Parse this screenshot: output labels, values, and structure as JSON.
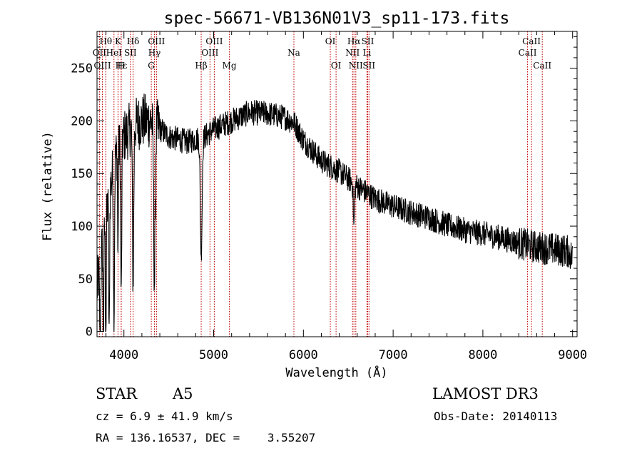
{
  "chart_data": {
    "type": "line",
    "title": "spec-56671-VB136N01V3_sp11-173.fits",
    "xlabel": "Wavelength (Å)",
    "ylabel": "Flux (relative)",
    "xlim": [
      3700,
      9050
    ],
    "ylim": [
      -5,
      285
    ],
    "xticks": [
      4000,
      5000,
      6000,
      7000,
      8000,
      9000
    ],
    "yticks": [
      0,
      50,
      100,
      150,
      200,
      250
    ],
    "continuum": [
      [
        3700,
        40
      ],
      [
        3800,
        110
      ],
      [
        3900,
        165
      ],
      [
        4000,
        185
      ],
      [
        4100,
        195
      ],
      [
        4200,
        200
      ],
      [
        4300,
        200
      ],
      [
        4500,
        185
      ],
      [
        4700,
        180
      ],
      [
        4900,
        185
      ],
      [
        5000,
        192
      ],
      [
        5200,
        200
      ],
      [
        5400,
        208
      ],
      [
        5600,
        207
      ],
      [
        5800,
        203
      ],
      [
        5900,
        198
      ],
      [
        6000,
        182
      ],
      [
        6200,
        162
      ],
      [
        6400,
        152
      ],
      [
        6600,
        138
      ],
      [
        6800,
        126
      ],
      [
        7000,
        119
      ],
      [
        7200,
        113
      ],
      [
        7400,
        108
      ],
      [
        7600,
        101
      ],
      [
        7800,
        96
      ],
      [
        8000,
        93
      ],
      [
        8200,
        89
      ],
      [
        8400,
        84
      ],
      [
        8600,
        80
      ],
      [
        8800,
        78
      ],
      [
        8950,
        76
      ],
      [
        9000,
        70
      ]
    ],
    "absorption_features": [
      {
        "center": 3735,
        "depth": 100,
        "width": 8
      },
      {
        "center": 3771,
        "depth": 130,
        "width": 6
      },
      {
        "center": 3798,
        "depth": 150,
        "width": 6
      },
      {
        "center": 3835,
        "depth": 140,
        "width": 7
      },
      {
        "center": 3889,
        "depth": 150,
        "width": 8
      },
      {
        "center": 3933,
        "depth": 110,
        "width": 5
      },
      {
        "center": 3970,
        "depth": 150,
        "width": 8
      },
      {
        "center": 4102,
        "depth": 150,
        "width": 10
      },
      {
        "center": 4340,
        "depth": 150,
        "width": 12
      },
      {
        "center": 4861,
        "depth": 110,
        "width": 14
      },
      {
        "center": 6563,
        "depth": 40,
        "width": 10
      }
    ],
    "noise_amplitude": 12,
    "spectral_lines": [
      {
        "label": "Hθ",
        "wavelength": 3798,
        "row": 1
      },
      {
        "label": "OII",
        "wavelength": 3727,
        "row": 2
      },
      {
        "label": "OIII",
        "wavelength": 3760,
        "row": 3
      },
      {
        "label": "K",
        "wavelength": 3934,
        "row": 1
      },
      {
        "label": "HeI",
        "wavelength": 3889,
        "row": 2
      },
      {
        "label": "Hε",
        "wavelength": 3970,
        "row": 3
      },
      {
        "label": "Hδ",
        "wavelength": 4102,
        "row": 1
      },
      {
        "label": "SII",
        "wavelength": 4072,
        "row": 2
      },
      {
        "label": "H",
        "wavelength": 3969,
        "row": 3
      },
      {
        "label": "OIII",
        "wavelength": 4363,
        "row": 1
      },
      {
        "label": "Hγ",
        "wavelength": 4340,
        "row": 2
      },
      {
        "label": "G",
        "wavelength": 4305,
        "row": 3
      },
      {
        "label": "Hβ",
        "wavelength": 4861,
        "row": 3
      },
      {
        "label": "OIII",
        "wavelength": 5007,
        "row": 1
      },
      {
        "label": "OIII",
        "wavelength": 4959,
        "row": 2
      },
      {
        "label": "Mg",
        "wavelength": 5175,
        "row": 3
      },
      {
        "label": "Na",
        "wavelength": 5894,
        "row": 2
      },
      {
        "label": "OI",
        "wavelength": 6300,
        "row": 1
      },
      {
        "label": "OI",
        "wavelength": 6364,
        "row": 3
      },
      {
        "label": "Hα",
        "wavelength": 6563,
        "row": 1
      },
      {
        "label": "NII",
        "wavelength": 6548,
        "row": 2
      },
      {
        "label": "NII",
        "wavelength": 6584,
        "row": 3
      },
      {
        "label": "SII",
        "wavelength": 6717,
        "row": 1
      },
      {
        "label": "Li",
        "wavelength": 6708,
        "row": 2
      },
      {
        "label": "SII",
        "wavelength": 6731,
        "row": 3
      },
      {
        "label": "CaII",
        "wavelength": 8542,
        "row": 1
      },
      {
        "label": "CaII",
        "wavelength": 8498,
        "row": 2
      },
      {
        "label": "CaII",
        "wavelength": 8662,
        "row": 3
      }
    ]
  },
  "info": {
    "class_label": "STAR",
    "subclass": "A5",
    "survey": "LAMOST DR3",
    "cz": "cz = 6.9 ± 41.9 km/s",
    "obs_date": "Obs-Date: 20140113",
    "coords": "RA = 136.16537, DEC =    3.55207"
  }
}
